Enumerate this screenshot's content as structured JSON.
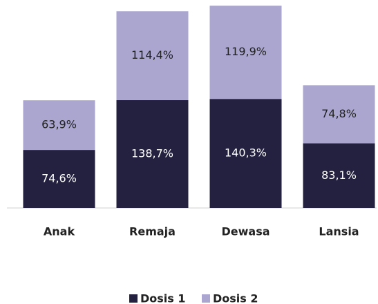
{
  "chart_data": {
    "type": "stacked_bar",
    "categories": [
      "Anak",
      "Remaja",
      "Dewasa",
      "Lansia"
    ],
    "series": [
      {
        "name": "Dosis 1",
        "color": "#23213f",
        "values": [
          74.6,
          138.7,
          140.3,
          83.1
        ],
        "value_labels": [
          "74,6%",
          "138,7%",
          "140,3%",
          "83,1%"
        ]
      },
      {
        "name": "Dosis 2",
        "color": "#aaa6d0",
        "values": [
          63.9,
          114.4,
          119.9,
          74.8
        ],
        "value_labels": [
          "63,9%",
          "114,4%",
          "119,9%",
          "74,8%"
        ]
      }
    ],
    "legend": "bottom"
  }
}
